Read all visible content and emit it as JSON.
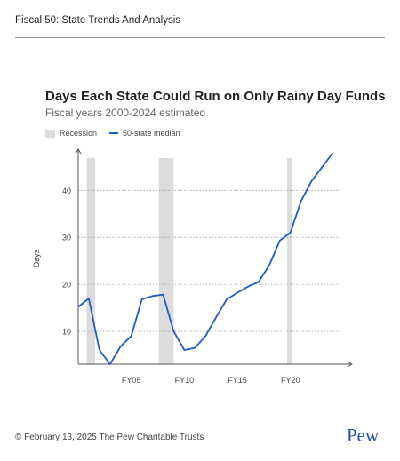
{
  "header": {
    "title": "Fiscal 50: State Trends And Analysis"
  },
  "footer": {
    "copyright": "© February 13, 2025 The Pew Charitable Trusts",
    "logo": "Pew"
  },
  "chart_data": {
    "type": "line",
    "title": "Days Each State Could Run on Only Rainy Day Funds",
    "subtitle": "Fiscal years 2000-2024 estimated",
    "ylabel": "Days",
    "xlabel": "",
    "legend": {
      "recession_label": "Recession",
      "series_label": "50-state median",
      "placement": "top-left"
    },
    "ylim": [
      3,
      48
    ],
    "xlim": [
      2000,
      2024.8
    ],
    "x_ticks": [
      {
        "value": 2005,
        "label": "FY05"
      },
      {
        "value": 2010,
        "label": "FY10"
      },
      {
        "value": 2015,
        "label": "FY15"
      },
      {
        "value": 2020,
        "label": "FY20"
      }
    ],
    "y_ticks": [
      10,
      20,
      30,
      40
    ],
    "recessions": [
      [
        2000.8,
        2001.6
      ],
      [
        2007.6,
        2009.0
      ],
      [
        2019.7,
        2020.2
      ]
    ],
    "series": [
      {
        "name": "50-state median",
        "color": "#1f5bc4",
        "x": [
          2000,
          2001,
          2002,
          2003,
          2004,
          2005,
          2006,
          2007,
          2008,
          2009,
          2010,
          2011,
          2012,
          2013,
          2014,
          2015,
          2016,
          2017,
          2018,
          2019,
          2020,
          2021,
          2022,
          2023,
          2024
        ],
        "values": [
          15.2,
          17.0,
          6.0,
          3.0,
          6.8,
          9.0,
          16.8,
          17.5,
          17.8,
          10.0,
          6.0,
          6.5,
          9.0,
          13.0,
          16.8,
          18.2,
          19.5,
          20.5,
          24.0,
          29.3,
          31.0,
          37.7,
          42.0,
          45.0,
          48.0
        ]
      }
    ],
    "grid": "horizontal dotted"
  }
}
